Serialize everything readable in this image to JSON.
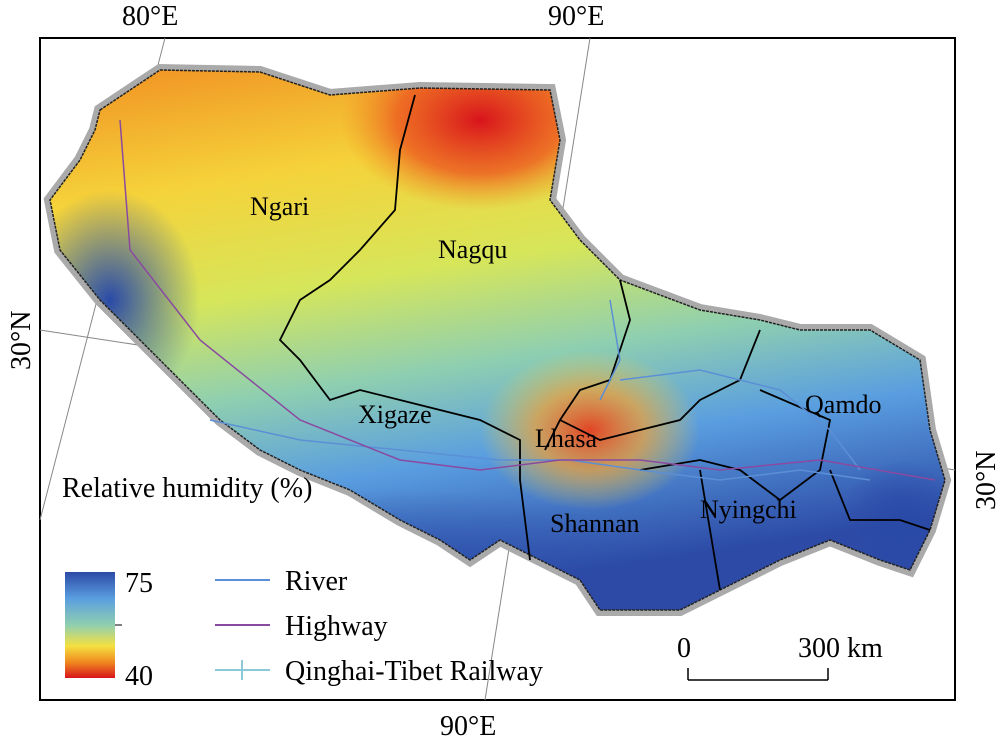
{
  "graticule": {
    "top": [
      "80°E",
      "90°E"
    ],
    "bottom": "90°E",
    "left": "30°N",
    "right": "30°N"
  },
  "regions": [
    "Ngari",
    "Nagqu",
    "Xigaze",
    "Lhasa",
    "Qamdo",
    "Shannan",
    "Nyingchi"
  ],
  "legend": {
    "title": "Relative humidity (%)",
    "max": 75,
    "min": 40,
    "lines": [
      "River",
      "Highway",
      "Qinghai-Tibet Railway"
    ]
  },
  "scale": {
    "start": "0",
    "end": "300 km"
  }
}
